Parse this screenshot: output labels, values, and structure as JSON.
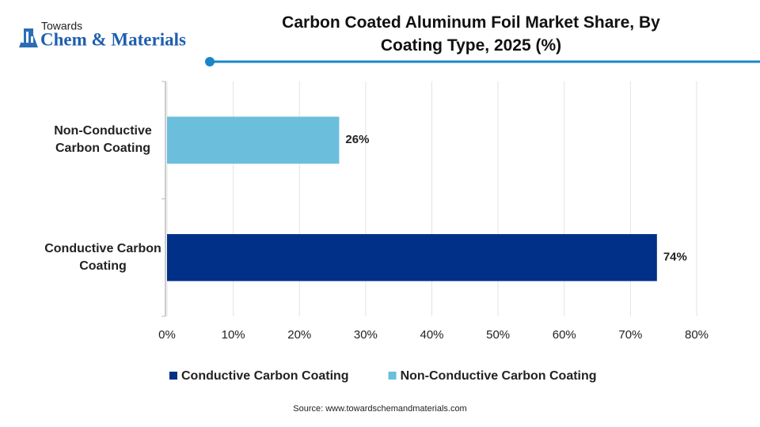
{
  "brand": {
    "small": "Towards",
    "name": "Chem & Materials"
  },
  "chart_data": {
    "type": "barh",
    "title": "Carbon Coated Aluminum Foil Market Share, By Coating Type, 2025 (%)",
    "categories": [
      "Conductive Carbon Coating",
      "Non-Conductive Carbon Coating"
    ],
    "values": [
      74,
      26
    ],
    "value_labels": [
      "74%",
      "26%"
    ],
    "colors": [
      "#003087",
      "#6bbfdc"
    ],
    "xlim": [
      0,
      80
    ],
    "xticks": [
      {
        "value": 0,
        "label": "0%"
      },
      {
        "value": 10,
        "label": "10%"
      },
      {
        "value": 20,
        "label": "20%"
      },
      {
        "value": 30,
        "label": "30%"
      },
      {
        "value": 40,
        "label": "40%"
      },
      {
        "value": 50,
        "label": "50%"
      },
      {
        "value": 60,
        "label": "60%"
      },
      {
        "value": 70,
        "label": "70%"
      },
      {
        "value": 80,
        "label": "80%"
      }
    ],
    "grid": true,
    "source": "Source: www.towardschemandmaterials.com"
  }
}
